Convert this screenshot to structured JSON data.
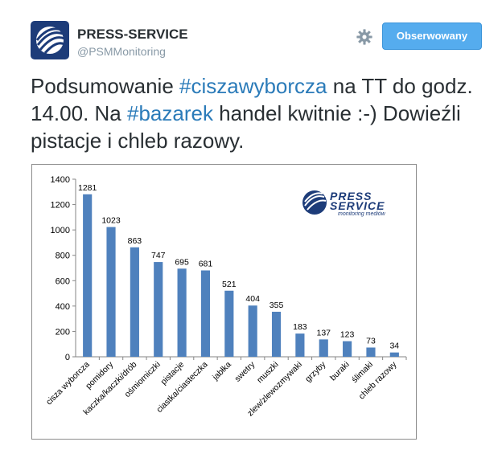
{
  "account": {
    "name": "PRESS-SERVICE",
    "handle": "@PSMMonitoring",
    "follow_label": "Obserwowany"
  },
  "tweet": {
    "part1": "Podsumowanie ",
    "tag1": "#ciszawyborcza",
    "part2": " na TT do godz. 14.00. Na ",
    "tag2": "#bazarek",
    "part3": " handel kwitnie :-) Dowieźli pistacje i chleb razowy."
  },
  "logo": {
    "line1": "PRESS",
    "line2": "SERVICE",
    "sub": "monitoring mediów"
  },
  "colors": {
    "bar": "#4f81bd",
    "link": "#2b7bb9",
    "button": "#55acee"
  },
  "chart_data": {
    "type": "bar",
    "categories": [
      "cisza wyborcza",
      "pomidory",
      "kaczka/kaczki/drób",
      "ośmiorniczki",
      "pistacje",
      "ciastka/ciasteczka",
      "jabłka",
      "swetry",
      "muszki",
      "zlew/zlewozmywaki",
      "grzyby",
      "buraki",
      "ślimaki",
      "chleb razowy"
    ],
    "values": [
      1281,
      1023,
      863,
      747,
      695,
      681,
      521,
      404,
      355,
      183,
      137,
      123,
      73,
      34
    ],
    "yticks": [
      "0",
      "200",
      "400",
      "600",
      "800",
      "1000",
      "1200",
      "1400"
    ],
    "ylim": [
      0,
      1400
    ],
    "grid": false,
    "legend": "none"
  }
}
